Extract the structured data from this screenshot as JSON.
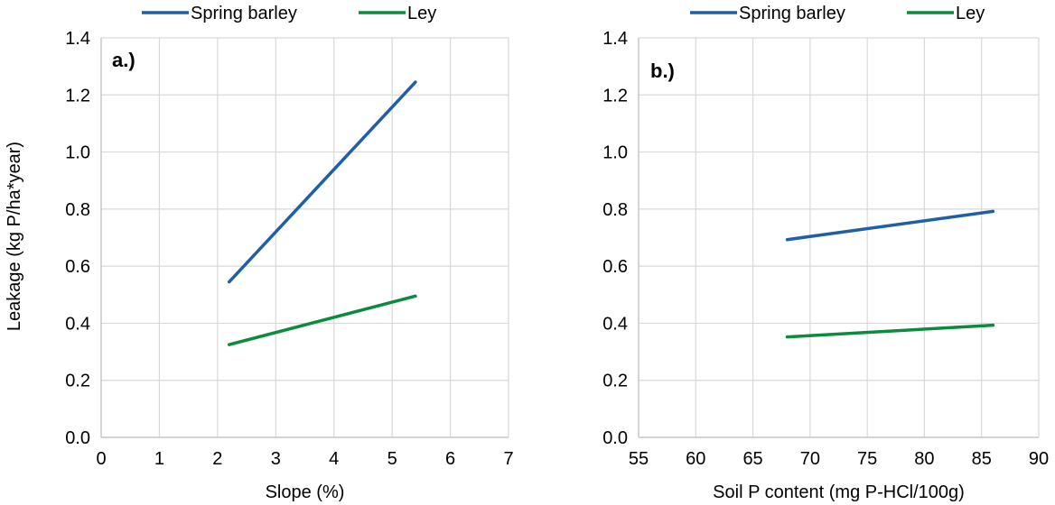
{
  "ylabel": "Leakage (kg P/ha*year)",
  "series_colors": {
    "Spring barley": "#1f5fa6",
    "Ley": "#0c8a3e"
  },
  "chart_data": [
    {
      "type": "line",
      "panel_label": "a.)",
      "xlabel": "Slope (%)",
      "ylabel": "Leakage (kg P/ha*year)",
      "xlim": [
        0,
        7
      ],
      "ylim": [
        0,
        1.4
      ],
      "xticks": [
        "0",
        "1",
        "2",
        "3",
        "4",
        "5",
        "6",
        "7"
      ],
      "yticks": [
        "0.0",
        "0.2",
        "0.4",
        "0.6",
        "0.8",
        "1.0",
        "1.2",
        "1.4"
      ],
      "grid": true,
      "legend": [
        "Spring barley",
        "Ley"
      ],
      "legend_position": "top",
      "series": [
        {
          "name": "Spring barley",
          "color": "#1f5fa6",
          "x": [
            2.2,
            5.4
          ],
          "y": [
            0.545,
            1.245
          ]
        },
        {
          "name": "Ley",
          "color": "#0c8a3e",
          "x": [
            2.2,
            5.4
          ],
          "y": [
            0.325,
            0.495
          ]
        }
      ]
    },
    {
      "type": "line",
      "panel_label": "b.)",
      "xlabel": "Soil P content (mg P-HCl/100g)",
      "ylabel": "",
      "xlim": [
        55,
        90
      ],
      "ylim": [
        0,
        1.4
      ],
      "xticks": [
        "55",
        "60",
        "65",
        "70",
        "75",
        "80",
        "85",
        "90"
      ],
      "yticks": [
        "0.0",
        "0.2",
        "0.4",
        "0.6",
        "0.8",
        "1.0",
        "1.2",
        "1.4"
      ],
      "grid": true,
      "legend": [
        "Spring barley",
        "Ley"
      ],
      "legend_position": "top",
      "series": [
        {
          "name": "Spring barley",
          "color": "#1f5fa6",
          "x": [
            68,
            86
          ],
          "y": [
            0.693,
            0.792
          ]
        },
        {
          "name": "Ley",
          "color": "#0c8a3e",
          "x": [
            68,
            86
          ],
          "y": [
            0.352,
            0.393
          ]
        }
      ]
    }
  ]
}
